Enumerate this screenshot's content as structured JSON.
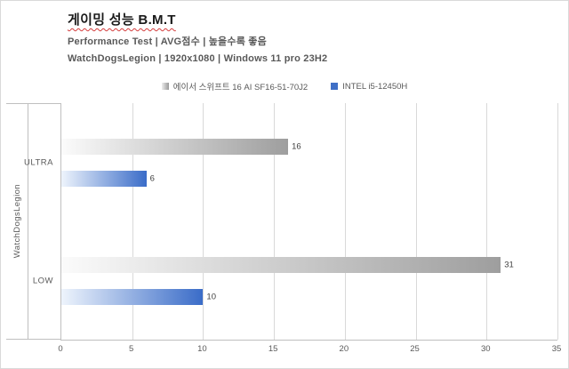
{
  "header": {
    "title": "게이밍 성능 B.M.T",
    "subtitle1": "Performance Test | AVG점수 | 높을수록 좋음",
    "subtitle2": "WatchDogsLegion | 1920x1080 | Windows 11 pro 23H2"
  },
  "legend": {
    "items": [
      {
        "label": "에이서 스위프트 16 AI SF16-51-70J2",
        "color_start": "#ededed",
        "color_end": "#9a9a9a"
      },
      {
        "label": "INTEL i5-12450H",
        "color_start": "#eef4fc",
        "color_end": "#3a6cc8"
      }
    ]
  },
  "axis": {
    "outer_label": "WatchDogsLegion",
    "categories": [
      "ULTRA",
      "LOW"
    ],
    "x_ticks": [
      0,
      5,
      10,
      15,
      20,
      25,
      30,
      35
    ]
  },
  "chart_data": {
    "type": "bar",
    "orientation": "horizontal",
    "title": "게이밍 성능 B.M.T",
    "categories": [
      "ULTRA",
      "LOW"
    ],
    "series": [
      {
        "name": "에이서 스위프트 16 AI SF16-51-70J2",
        "values": [
          16,
          31
        ],
        "color_start": "#fbfbfb",
        "color_end": "#9e9e9e"
      },
      {
        "name": "INTEL i5-12450H",
        "values": [
          6,
          10
        ],
        "color_start": "#eef4fc",
        "color_end": "#3a6cc8"
      }
    ],
    "xlabel": "",
    "ylabel": "WatchDogsLegion",
    "xlim": [
      0,
      35
    ],
    "grid": true,
    "legend_position": "top",
    "data_labels": true
  },
  "colors": {
    "axis_line": "#bfbfbf",
    "gridline": "#d9d9d9",
    "text_muted": "#595959",
    "title_underline": "#d43c3c",
    "blue_accent": "#3f6fc6"
  }
}
